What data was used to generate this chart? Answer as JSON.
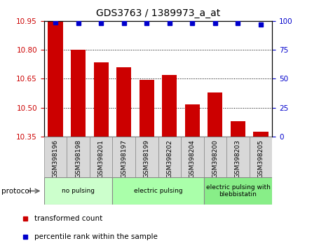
{
  "title": "GDS3763 / 1389973_a_at",
  "categories": [
    "GSM398196",
    "GSM398198",
    "GSM398201",
    "GSM398197",
    "GSM398199",
    "GSM398202",
    "GSM398204",
    "GSM398200",
    "GSM398203",
    "GSM398205"
  ],
  "bar_values": [
    10.945,
    10.8,
    10.735,
    10.71,
    10.645,
    10.67,
    10.515,
    10.58,
    10.43,
    10.375
  ],
  "percentile_values": [
    99,
    98,
    98,
    98,
    98,
    98,
    98,
    98,
    98,
    97
  ],
  "ylim_left": [
    10.35,
    10.95
  ],
  "ylim_right": [
    0,
    100
  ],
  "yticks_left": [
    10.35,
    10.5,
    10.65,
    10.8,
    10.95
  ],
  "yticks_right": [
    0,
    25,
    50,
    75,
    100
  ],
  "bar_color": "#cc0000",
  "percentile_color": "#0000cc",
  "groups": [
    {
      "label": "no pulsing",
      "start": 0,
      "end": 3,
      "color": "#ccffcc"
    },
    {
      "label": "electric pulsing",
      "start": 3,
      "end": 7,
      "color": "#aaffaa"
    },
    {
      "label": "electric pulsing with\nblebbistatin",
      "start": 7,
      "end": 10,
      "color": "#88ee88"
    }
  ],
  "group_row_label": "protocol",
  "legend_bar_label": "transformed count",
  "legend_percentile_label": "percentile rank within the sample",
  "tick_label_color_left": "#cc0000",
  "tick_label_color_right": "#0000cc",
  "grid_color": "black",
  "cell_color": "#d8d8d8",
  "background_color": "#ffffff"
}
